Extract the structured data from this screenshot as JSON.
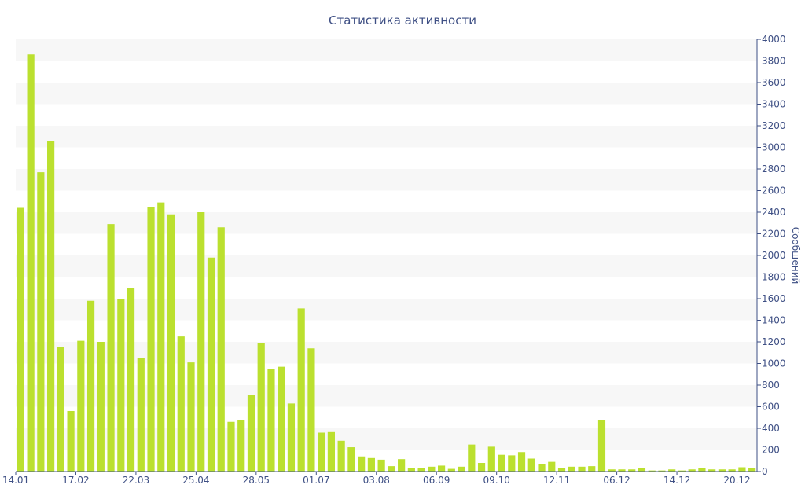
{
  "chart_data": {
    "type": "bar",
    "title": "Статистика активности",
    "ylabel": "Сообщений",
    "xlabel": "",
    "ylim": [
      0,
      4000
    ],
    "y_ticks": [
      0,
      200,
      400,
      600,
      800,
      1000,
      1200,
      1400,
      1600,
      1800,
      2000,
      2200,
      2400,
      2600,
      2800,
      3000,
      3200,
      3400,
      3600,
      3800,
      4000
    ],
    "y_axis_position": "right",
    "grid": "alternating horizontal bands",
    "bar_color": "#bbe02f",
    "x_tick_labels": [
      {
        "label": "14.01",
        "index": 0
      },
      {
        "label": "17.02",
        "index": 6
      },
      {
        "label": "22.03",
        "index": 12
      },
      {
        "label": "25.04",
        "index": 18
      },
      {
        "label": "28.05",
        "index": 24
      },
      {
        "label": "01.07",
        "index": 30
      },
      {
        "label": "03.08",
        "index": 36
      },
      {
        "label": "06.09",
        "index": 42
      },
      {
        "label": "09.10",
        "index": 48
      },
      {
        "label": "12.11",
        "index": 54
      },
      {
        "label": "06.12",
        "index": 60
      },
      {
        "label": "14.12",
        "index": 66
      },
      {
        "label": "20.12",
        "index": 72
      }
    ],
    "values": [
      2440,
      3860,
      2770,
      3060,
      1150,
      560,
      1210,
      1580,
      1200,
      2290,
      1600,
      1700,
      1050,
      2450,
      2490,
      2380,
      1250,
      1010,
      2400,
      1980,
      2260,
      460,
      480,
      710,
      1190,
      950,
      970,
      630,
      1510,
      1140,
      360,
      365,
      285,
      225,
      140,
      125,
      110,
      50,
      115,
      30,
      30,
      45,
      55,
      25,
      45,
      250,
      80,
      230,
      155,
      150,
      180,
      120,
      70,
      90,
      35,
      45,
      45,
      50,
      480,
      20,
      20,
      20,
      35,
      10,
      10,
      20,
      10,
      20,
      35,
      20,
      20,
      20,
      40,
      30
    ]
  }
}
